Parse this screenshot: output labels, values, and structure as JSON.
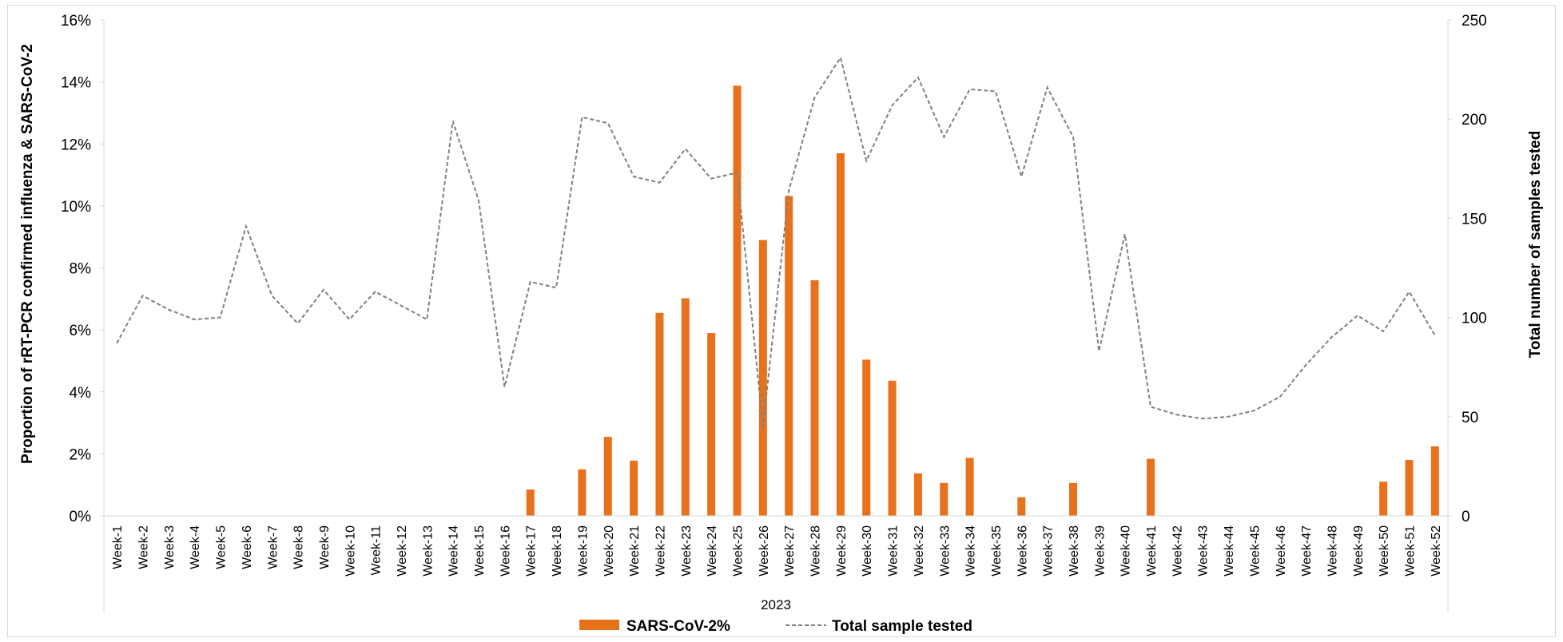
{
  "chart_data": {
    "type": "bar+line",
    "categories": [
      "Week-1",
      "Week-2",
      "Week-3",
      "Week-4",
      "Week-5",
      "Week-6",
      "Week-7",
      "Week-8",
      "Week-9",
      "Week-10",
      "Week-11",
      "Week-12",
      "Week-13",
      "Week-14",
      "Week-15",
      "Week-16",
      "Week-17",
      "Week-18",
      "Week-19",
      "Week-20",
      "Week-21",
      "Week-22",
      "Week-23",
      "Week-24",
      "Week-25",
      "Week-26",
      "Week-27",
      "Week-28",
      "Week-29",
      "Week-30",
      "Week-31",
      "Week-32",
      "Week-33",
      "Week-34",
      "Week-35",
      "Week-36",
      "Week-37",
      "Week-38",
      "Week-39",
      "Week-40",
      "Week-41",
      "Week-42",
      "Week-43",
      "Week-44",
      "Week-45",
      "Week-46",
      "Week-47",
      "Week-48",
      "Week-49",
      "Week-50",
      "Week-51",
      "Week-52"
    ],
    "x_group_label": "2023",
    "series": [
      {
        "name": "SARS-CoV-2%",
        "type": "bar",
        "axis": "left",
        "color": "#e8711b",
        "values": [
          0,
          0,
          0,
          0,
          0,
          0,
          0,
          0,
          0,
          0,
          0,
          0,
          0,
          0,
          0,
          0,
          0.85,
          0,
          1.5,
          2.55,
          1.78,
          6.55,
          7.02,
          5.9,
          13.88,
          8.9,
          10.32,
          7.6,
          11.7,
          5.04,
          4.36,
          1.37,
          1.06,
          1.87,
          0,
          0.6,
          0,
          1.06,
          0,
          0,
          1.84,
          0,
          0,
          0,
          0,
          0,
          0,
          0,
          0,
          1.1,
          1.8,
          2.24
        ]
      },
      {
        "name": "Total sample tested",
        "type": "line",
        "axis": "right",
        "color": "#808080",
        "values": [
          87,
          111,
          104,
          99,
          100,
          146,
          111,
          97,
          114,
          99,
          113,
          106,
          99,
          199,
          159,
          65,
          118,
          115,
          201,
          198,
          171,
          168,
          185,
          170,
          173,
          45,
          164,
          211,
          231,
          179,
          207,
          221,
          191,
          215,
          214,
          171,
          216,
          191,
          83,
          142,
          55,
          51,
          49,
          50,
          53,
          60,
          76,
          90,
          101,
          93,
          113,
          91
        ]
      }
    ],
    "y_left": {
      "title": "Proportion of rRT-PCR confirmed influenza & SARS-CoV-2",
      "min": 0,
      "max": 16,
      "step": 2,
      "tick_labels": [
        "0%",
        "2%",
        "4%",
        "6%",
        "8%",
        "10%",
        "12%",
        "14%",
        "16%"
      ]
    },
    "y_right": {
      "title": "Total number of samples tested",
      "min": 0,
      "max": 250,
      "step": 50,
      "tick_labels": [
        "0",
        "50",
        "100",
        "150",
        "200",
        "250"
      ]
    },
    "grid": false,
    "legend_position": "bottom"
  }
}
